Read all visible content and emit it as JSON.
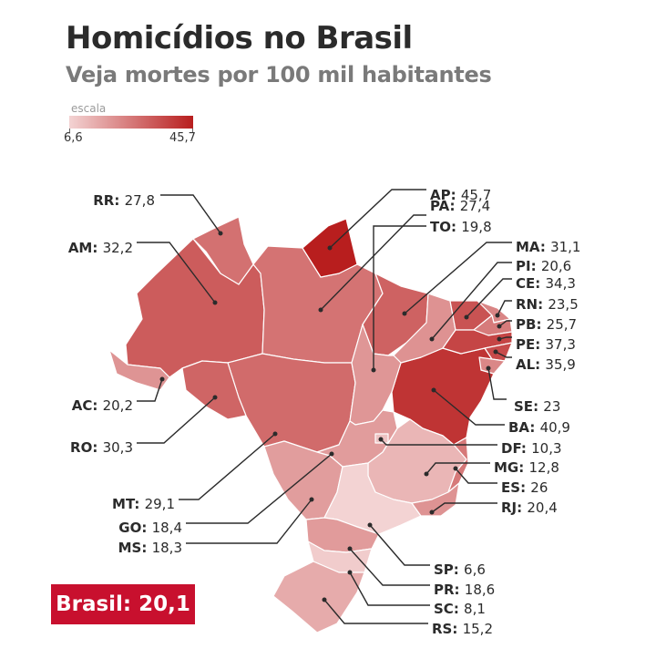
{
  "title": "Homicídios no Brasil",
  "subtitle": "Veja mortes por 100 mil habitantes",
  "scale": {
    "label": "escala",
    "min": "6,6",
    "max": "45,7",
    "min_value": 6.6,
    "max_value": 45.7,
    "color_low": "#f3d3d3",
    "color_high": "#b81e1e"
  },
  "states": [
    {
      "uf": "AP",
      "value": "45,7",
      "v": 45.7
    },
    {
      "uf": "PA",
      "value": "27,4",
      "v": 27.4
    },
    {
      "uf": "TO",
      "value": "19,8",
      "v": 19.8
    },
    {
      "uf": "MA",
      "value": "31,1",
      "v": 31.1
    },
    {
      "uf": "PI",
      "value": "20,6",
      "v": 20.6
    },
    {
      "uf": "CE",
      "value": "34,3",
      "v": 34.3
    },
    {
      "uf": "RN",
      "value": "23,5",
      "v": 23.5
    },
    {
      "uf": "PB",
      "value": "25,7",
      "v": 25.7
    },
    {
      "uf": "PE",
      "value": "37,3",
      "v": 37.3
    },
    {
      "uf": "AL",
      "value": "35,9",
      "v": 35.9
    },
    {
      "uf": "SE",
      "value": "23",
      "v": 23
    },
    {
      "uf": "BA",
      "value": "40,9",
      "v": 40.9
    },
    {
      "uf": "DF",
      "value": "10,3",
      "v": 10.3
    },
    {
      "uf": "MG",
      "value": "12,8",
      "v": 12.8
    },
    {
      "uf": "ES",
      "value": "26",
      "v": 26
    },
    {
      "uf": "RJ",
      "value": "20,4",
      "v": 20.4
    },
    {
      "uf": "SP",
      "value": "6,6",
      "v": 6.6
    },
    {
      "uf": "PR",
      "value": "18,6",
      "v": 18.6
    },
    {
      "uf": "SC",
      "value": "8,1",
      "v": 8.1
    },
    {
      "uf": "RS",
      "value": "15,2",
      "v": 15.2
    },
    {
      "uf": "RR",
      "value": "27,8",
      "v": 27.8
    },
    {
      "uf": "AM",
      "value": "32,2",
      "v": 32.2
    },
    {
      "uf": "AC",
      "value": "20,2",
      "v": 20.2
    },
    {
      "uf": "RO",
      "value": "30,3",
      "v": 30.3
    },
    {
      "uf": "MT",
      "value": "29,1",
      "v": 29.1
    },
    {
      "uf": "GO",
      "value": "18,4",
      "v": 18.4
    },
    {
      "uf": "MS",
      "value": "18,3",
      "v": 18.3
    }
  ],
  "total": {
    "label": "Brasil:",
    "value": "20,1"
  }
}
